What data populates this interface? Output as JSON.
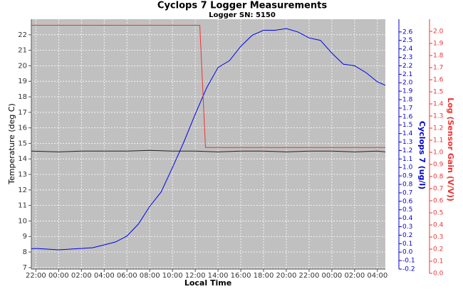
{
  "chart_data": {
    "type": "line",
    "title": "Cyclops 7 Logger Measurements",
    "subtitle": "Logger SN: 5150",
    "x_label": "Local Time",
    "y_label": "Temperature (deg C)",
    "y2_label": "Cyclops 7 (ug/l)",
    "y3_label": "Log (Sensor Gain (V/V))",
    "grid": true,
    "xlim": [
      -0.4,
      30.7
    ],
    "xticks": [
      {
        "value": 0,
        "label": "22:00"
      },
      {
        "value": 2,
        "label": "00:00"
      },
      {
        "value": 4,
        "label": "02:00"
      },
      {
        "value": 6,
        "label": "04:00"
      },
      {
        "value": 8,
        "label": "06:00"
      },
      {
        "value": 10,
        "label": "08:00"
      },
      {
        "value": 12,
        "label": "10:00"
      },
      {
        "value": 14,
        "label": "12:00"
      },
      {
        "value": 16,
        "label": "14:00"
      },
      {
        "value": 18,
        "label": "16:00"
      },
      {
        "value": 20,
        "label": "18:00"
      },
      {
        "value": 22,
        "label": "20:00"
      },
      {
        "value": 24,
        "label": "22:00"
      },
      {
        "value": 26,
        "label": "00:00"
      },
      {
        "value": 28,
        "label": "02:00"
      },
      {
        "value": 30,
        "label": "04:00"
      }
    ],
    "ylim": [
      6.9,
      23
    ],
    "yticks": [
      7,
      8,
      9,
      10,
      11,
      12,
      13,
      14,
      15,
      16,
      17,
      18,
      19,
      20,
      21,
      22
    ],
    "y2lim": [
      -0.2,
      2.75
    ],
    "y2ticks": [
      -0.2,
      -0.1,
      {
        "value": 0,
        "label": "0.0"
      },
      0.1,
      0.2,
      0.3,
      0.4,
      0.5,
      0.6,
      0.7,
      0.8,
      0.9,
      {
        "value": 1,
        "label": "1.0"
      },
      1.1,
      1.2,
      1.3,
      1.4,
      1.5,
      1.6,
      1.7,
      1.8,
      1.9,
      {
        "value": 2,
        "label": "2.0"
      },
      2.1,
      2.2,
      2.3,
      2.4,
      2.5,
      2.6
    ],
    "y3lim": [
      0,
      2.1
    ],
    "y3ticks": [
      {
        "value": 0,
        "label": "0.0"
      },
      0.1,
      0.2,
      0.3,
      0.4,
      0.5,
      0.6,
      0.7,
      0.8,
      0.9,
      {
        "value": 1,
        "label": "1.0"
      },
      1.1,
      1.2,
      1.3,
      1.4,
      1.5,
      1.6,
      1.7,
      1.8,
      1.9,
      {
        "value": 2,
        "label": "2.0"
      }
    ],
    "series": [
      {
        "name": "Temperature",
        "color": "#202020",
        "axis": "y",
        "x": [
          -0.4,
          2,
          4,
          6,
          8,
          10,
          12,
          14,
          16,
          18,
          20,
          22,
          24,
          26,
          28,
          30,
          30.7
        ],
        "values": [
          14.5,
          14.45,
          14.5,
          14.5,
          14.5,
          14.55,
          14.5,
          14.5,
          14.45,
          14.5,
          14.5,
          14.45,
          14.5,
          14.5,
          14.45,
          14.5,
          14.45
        ]
      },
      {
        "name": "Cyclops 7",
        "color": "#0000ee",
        "axis": "y2",
        "x": [
          -0.4,
          0,
          1,
          2,
          3,
          4,
          5,
          6,
          7,
          8,
          9,
          10,
          11,
          12,
          13,
          14,
          15,
          16,
          17,
          18,
          19,
          20,
          21,
          22,
          23,
          24,
          25,
          26,
          27,
          28,
          29,
          30,
          30.7
        ],
        "values": [
          0.04,
          0.044,
          0.035,
          0.027,
          0.035,
          0.044,
          0.052,
          0.086,
          0.12,
          0.19,
          0.33,
          0.54,
          0.71,
          1.0,
          1.3,
          1.63,
          1.94,
          2.18,
          2.26,
          2.43,
          2.56,
          2.62,
          2.62,
          2.64,
          2.6,
          2.53,
          2.5,
          2.35,
          2.22,
          2.2,
          2.12,
          2.01,
          1.97
        ]
      },
      {
        "name": "Sensor Gain",
        "color": "#ee3333",
        "axis": "y3",
        "x": [
          -0.4,
          14.4,
          14.9,
          30.7
        ],
        "values": [
          2.05,
          2.05,
          1.04,
          1.04
        ]
      }
    ]
  }
}
